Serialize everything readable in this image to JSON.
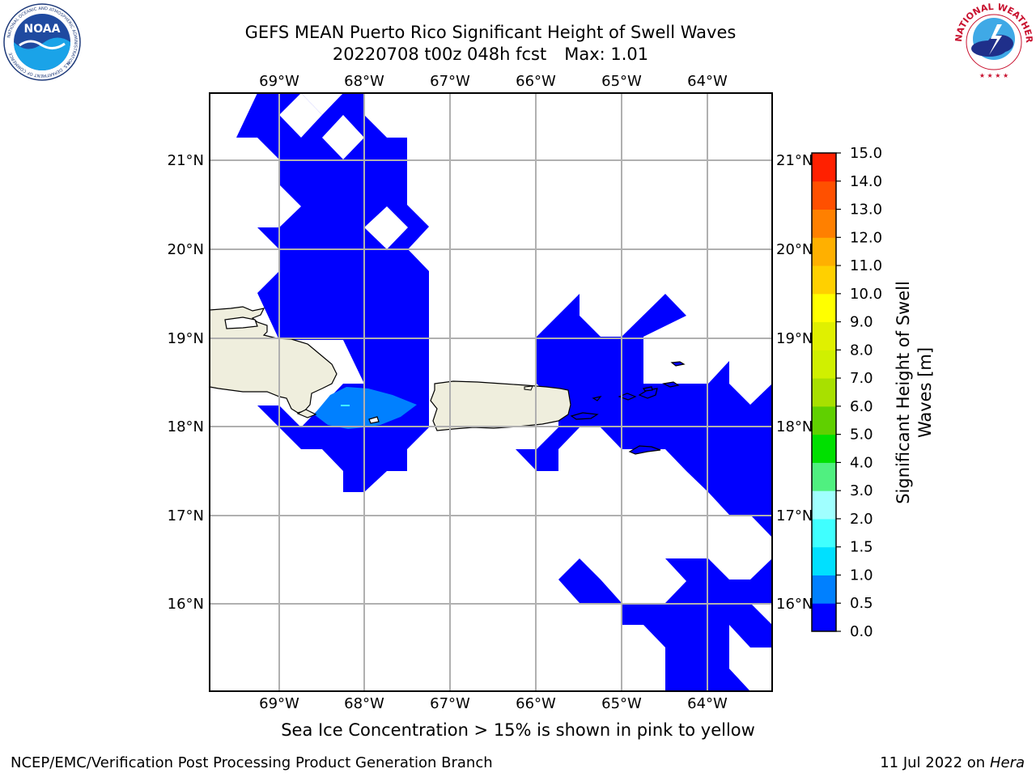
{
  "header": {
    "title_line1": "GEFS MEAN Puerto Rico Significant Height of Swell Waves",
    "title_date": "20220708 t00z 048h fcst",
    "title_max": "Max: 1.01"
  },
  "map": {
    "lon_labels": [
      "69°W",
      "68°W",
      "67°W",
      "66°W",
      "65°W",
      "64°W"
    ],
    "lat_labels": [
      "21°N",
      "20°N",
      "19°N",
      "18°N",
      "17°N",
      "16°N"
    ],
    "colors": {
      "land": "#efeedd",
      "swell_0_0.5": "#0000ff",
      "swell_0.5_1.0": "#0080ff",
      "gridline": "#b0b0b0",
      "coastline": "#000000"
    }
  },
  "colorbar": {
    "label": "Significant Height of Swell Waves [m]",
    "label_line1": "Significant Height of Swell",
    "label_line2": "Waves [m]",
    "ticks": [
      "15.0",
      "14.0",
      "13.0",
      "12.0",
      "11.0",
      "10.0",
      "9.0",
      "8.0",
      "7.0",
      "6.0",
      "5.0",
      "4.0",
      "3.0",
      "2.0",
      "1.5",
      "1.0",
      "0.5",
      "0.0"
    ],
    "bin_colors": [
      "#0000ff",
      "#0080ff",
      "#00e0ff",
      "#40ffff",
      "#a0ffff",
      "#50f080",
      "#00e000",
      "#60d000",
      "#a8e000",
      "#d0f000",
      "#e0f000",
      "#ffff00",
      "#ffd000",
      "#ffb000",
      "#ff8000",
      "#ff5000",
      "#ff2000"
    ]
  },
  "caption": "Sea Ice Concentration > 15% is shown in pink to yellow",
  "footer": {
    "left": "NCEP/EMC/Verification Post Processing Product Generation Branch",
    "right_prefix": "11 Jul 2022 on",
    "right_host": "Hera"
  },
  "logos": {
    "noaa": {
      "text": "NOAA",
      "ring_text": "NATIONAL OCEANIC AND ATMOSPHERIC ADMINISTRATION",
      "ring_text_bottom": "U.S. DEPARTMENT OF COMMERCE",
      "icon": "noaa-logo"
    },
    "nws": {
      "ring_text": "NATIONAL WEATHER SERVICE",
      "icon": "nws-logo"
    }
  }
}
